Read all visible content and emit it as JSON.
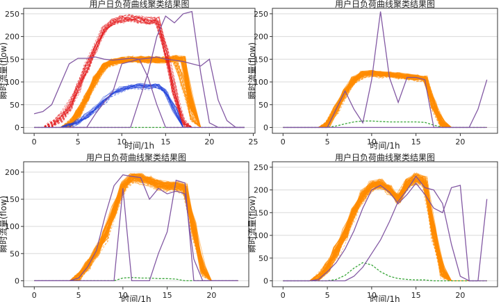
{
  "chart_data": [
    {
      "type": "line",
      "title": "用户日负荷曲线聚类结果图",
      "xlabel": "时间/1h",
      "ylabel": "瞬时流量(flow)",
      "xlim": [
        -1.2,
        25.2
      ],
      "ylim": [
        -13,
        262
      ],
      "xticks": [
        0,
        5,
        10,
        15,
        20,
        25
      ],
      "yticks": [
        0,
        50,
        100,
        150,
        200,
        250
      ],
      "grid": "horizontal",
      "x": [
        0,
        1,
        2,
        3,
        4,
        5,
        6,
        7,
        8,
        9,
        10,
        11,
        12,
        13,
        14,
        15,
        16,
        17,
        18,
        19,
        20,
        21,
        22,
        23,
        24
      ],
      "series": [
        {
          "color": "#ff8c00",
          "style": "solid",
          "count": 60,
          "spread": 7,
          "values": [
            0,
            0,
            0,
            0,
            5,
            30,
            68,
            105,
            135,
            145,
            148,
            150,
            150,
            150,
            148,
            148,
            152,
            150,
            50,
            0,
            0,
            0,
            0,
            0,
            0
          ]
        },
        {
          "color": "#ff8c00",
          "style": "dashed",
          "count": 30,
          "spread": 8,
          "values": [
            0,
            0,
            0,
            0,
            5,
            28,
            65,
            102,
            132,
            142,
            147,
            150,
            148,
            148,
            150,
            150,
            150,
            100,
            20,
            0,
            0,
            0,
            0,
            0,
            0
          ]
        },
        {
          "color": "#e41a1c",
          "style": "dashed",
          "count": 30,
          "spread": 9,
          "values": [
            0,
            0,
            5,
            20,
            45,
            85,
            130,
            175,
            215,
            232,
            238,
            240,
            238,
            235,
            235,
            170,
            80,
            10,
            0,
            0,
            0,
            0,
            0,
            0,
            0
          ]
        },
        {
          "color": "#1f3fdb",
          "style": "solid",
          "count": 12,
          "spread": 5,
          "values": [
            0,
            0,
            0,
            0,
            3,
            12,
            25,
            42,
            62,
            78,
            85,
            90,
            92,
            90,
            92,
            80,
            40,
            0,
            0,
            0,
            0,
            0,
            0,
            0,
            0
          ]
        },
        {
          "color": "#1f3fdb",
          "style": "dashed",
          "count": 6,
          "spread": 6,
          "values": [
            0,
            0,
            0,
            0,
            3,
            10,
            22,
            40,
            58,
            75,
            82,
            88,
            90,
            88,
            90,
            75,
            35,
            0,
            0,
            0,
            0,
            0,
            0,
            0,
            0
          ]
        },
        {
          "color": "#2ca02c",
          "style": "dashed",
          "count": 1,
          "spread": 0,
          "values": [
            0,
            0,
            0,
            0,
            0,
            0,
            0,
            0,
            0,
            0,
            0,
            0,
            0,
            0,
            0,
            0,
            0,
            0,
            0,
            0,
            0,
            0,
            0,
            0,
            0
          ]
        },
        {
          "color": "#7b4f9e",
          "style": "solid",
          "count": 1,
          "spread": 0,
          "values": [
            30,
            35,
            50,
            95,
            140,
            152,
            152,
            155,
            150,
            148,
            150,
            152,
            150,
            152,
            155,
            150,
            148,
            145,
            140,
            135,
            150,
            60,
            15,
            0,
            0
          ]
        },
        {
          "color": "#7b4f9e",
          "style": "solid",
          "count": 1,
          "spread": 0,
          "values": [
            0,
            0,
            0,
            0,
            0,
            0,
            0,
            0,
            0,
            0,
            0,
            0,
            60,
            120,
            200,
            245,
            230,
            250,
            255,
            120,
            10,
            0,
            0,
            0,
            0
          ]
        },
        {
          "color": "#7b4f9e",
          "style": "solid",
          "count": 1,
          "spread": 0,
          "values": [
            0,
            0,
            0,
            0,
            0,
            0,
            0,
            30,
            55,
            80,
            140,
            145,
            150,
            110,
            50,
            0,
            0,
            0,
            0,
            0,
            0,
            0,
            0,
            0,
            0
          ]
        }
      ]
    },
    {
      "type": "line",
      "title": "用户日负荷曲线聚类结果图",
      "xlabel": "时间/1h",
      "ylabel": "瞬时流量(flow)",
      "xlim": [
        -1.2,
        24.2
      ],
      "ylim": [
        -13,
        262
      ],
      "xticks": [
        0,
        5,
        10,
        15,
        20
      ],
      "yticks": [
        0,
        50,
        100,
        150,
        200,
        250
      ],
      "grid": "horizontal",
      "x": [
        0,
        1,
        2,
        3,
        4,
        5,
        6,
        7,
        8,
        9,
        10,
        11,
        12,
        13,
        14,
        15,
        16,
        17,
        18,
        19,
        20,
        21,
        22,
        23
      ],
      "series": [
        {
          "color": "#ff8c00",
          "style": "solid",
          "count": 55,
          "spread": 6,
          "values": [
            0,
            0,
            0,
            0,
            0,
            5,
            40,
            78,
            105,
            118,
            120,
            118,
            117,
            115,
            112,
            110,
            108,
            50,
            8,
            0,
            0,
            0,
            0,
            0
          ]
        },
        {
          "color": "#ff8c00",
          "style": "dashed",
          "count": 25,
          "spread": 7,
          "values": [
            0,
            0,
            0,
            0,
            0,
            5,
            38,
            75,
            100,
            115,
            118,
            115,
            115,
            112,
            110,
            108,
            105,
            45,
            5,
            0,
            0,
            0,
            0,
            0
          ]
        },
        {
          "color": "#2ca02c",
          "style": "dashed",
          "count": 1,
          "spread": 0,
          "values": [
            0,
            0,
            0,
            0,
            0,
            0,
            3,
            8,
            12,
            14,
            14,
            13,
            12,
            12,
            12,
            12,
            11,
            5,
            0,
            0,
            0,
            0,
            0,
            0
          ]
        },
        {
          "color": "#7b4f9e",
          "style": "solid",
          "count": 1,
          "spread": 0,
          "values": [
            0,
            0,
            0,
            0,
            0,
            0,
            40,
            80,
            40,
            10,
            105,
            255,
            110,
            55,
            110,
            110,
            105,
            0,
            0,
            0,
            0,
            0,
            40,
            105
          ]
        },
        {
          "color": "#7b4f9e",
          "style": "solid",
          "count": 1,
          "spread": 0,
          "values": [
            0,
            0,
            0,
            0,
            0,
            0,
            0,
            0,
            0,
            0,
            0,
            0,
            0,
            0,
            0,
            0,
            0,
            0,
            0,
            0,
            0,
            0,
            0,
            0
          ]
        }
      ]
    },
    {
      "type": "line",
      "title": "用户日负荷曲线聚类结果图",
      "xlabel": "时间/1h",
      "ylabel": "瞬时流量(flow)",
      "xlim": [
        -1.2,
        24.2
      ],
      "ylim": [
        -11,
        219
      ],
      "xticks": [
        0,
        5,
        10,
        15,
        20
      ],
      "yticks": [
        0,
        50,
        100,
        150,
        200
      ],
      "grid": "horizontal",
      "x": [
        0,
        1,
        2,
        3,
        4,
        5,
        6,
        7,
        8,
        9,
        10,
        11,
        12,
        13,
        14,
        15,
        16,
        17,
        18,
        19,
        20,
        21,
        22,
        23
      ],
      "series": [
        {
          "color": "#ff8c00",
          "style": "solid",
          "count": 55,
          "spread": 8,
          "values": [
            0,
            0,
            0,
            0,
            0,
            5,
            30,
            55,
            85,
            130,
            175,
            190,
            190,
            185,
            178,
            175,
            175,
            172,
            100,
            20,
            0,
            0,
            0,
            0
          ]
        },
        {
          "color": "#ff8c00",
          "style": "dashed",
          "count": 25,
          "spread": 9,
          "values": [
            0,
            0,
            0,
            0,
            0,
            5,
            28,
            52,
            80,
            125,
            170,
            188,
            185,
            182,
            175,
            172,
            172,
            165,
            90,
            15,
            0,
            0,
            0,
            0
          ]
        },
        {
          "color": "#2ca02c",
          "style": "dashed",
          "count": 1,
          "spread": 0,
          "values": [
            0,
            0,
            0,
            0,
            0,
            0,
            0,
            0,
            0,
            0,
            5,
            6,
            5,
            5,
            4,
            4,
            3,
            0,
            0,
            0,
            0,
            0,
            0,
            0
          ]
        },
        {
          "color": "#7b4f9e",
          "style": "solid",
          "count": 1,
          "spread": 0,
          "values": [
            0,
            0,
            0,
            0,
            0,
            5,
            25,
            55,
            120,
            175,
            195,
            192,
            190,
            150,
            170,
            160,
            165,
            160,
            40,
            0,
            0,
            0,
            0,
            0
          ]
        },
        {
          "color": "#7b4f9e",
          "style": "solid",
          "count": 1,
          "spread": 0,
          "values": [
            0,
            0,
            0,
            0,
            0,
            0,
            0,
            0,
            0,
            0,
            170,
            0,
            0,
            0,
            50,
            90,
            185,
            180,
            0,
            0,
            0,
            0,
            0,
            0
          ]
        }
      ]
    },
    {
      "type": "line",
      "title": "用户日负荷曲线聚类结果图",
      "xlabel": "时间/1h",
      "ylabel": "瞬时流量(flow)",
      "xlim": [
        -1.2,
        24.2
      ],
      "ylim": [
        -13,
        262
      ],
      "xticks": [
        0,
        5,
        10,
        15,
        20
      ],
      "yticks": [
        0,
        50,
        100,
        150,
        200,
        250
      ],
      "grid": "horizontal",
      "x": [
        0,
        1,
        2,
        3,
        4,
        5,
        6,
        7,
        8,
        9,
        10,
        11,
        12,
        13,
        14,
        15,
        16,
        17,
        18,
        19,
        20,
        21,
        22,
        23
      ],
      "series": [
        {
          "color": "#ff8c00",
          "style": "solid",
          "count": 55,
          "spread": 10,
          "values": [
            0,
            0,
            0,
            0,
            5,
            30,
            65,
            105,
            150,
            190,
            210,
            215,
            200,
            180,
            215,
            228,
            220,
            110,
            20,
            0,
            0,
            0,
            0,
            0
          ]
        },
        {
          "color": "#ff8c00",
          "style": "dashed",
          "count": 25,
          "spread": 11,
          "values": [
            0,
            0,
            0,
            0,
            5,
            28,
            62,
            100,
            145,
            185,
            205,
            210,
            198,
            178,
            212,
            222,
            215,
            100,
            15,
            0,
            0,
            0,
            0,
            0
          ]
        },
        {
          "color": "#2ca02c",
          "style": "dashed",
          "count": 1,
          "spread": 0,
          "values": [
            0,
            0,
            0,
            0,
            0,
            0,
            3,
            12,
            28,
            40,
            35,
            20,
            10,
            5,
            3,
            2,
            2,
            0,
            0,
            0,
            0,
            0,
            0,
            0
          ]
        },
        {
          "color": "#7b4f9e",
          "style": "solid",
          "count": 1,
          "spread": 0,
          "values": [
            0,
            0,
            0,
            0,
            3,
            20,
            40,
            70,
            110,
            160,
            200,
            210,
            195,
            170,
            190,
            215,
            190,
            160,
            150,
            205,
            210,
            0,
            0,
            180
          ]
        },
        {
          "color": "#7b4f9e",
          "style": "solid",
          "count": 1,
          "spread": 0,
          "values": [
            0,
            0,
            0,
            0,
            0,
            0,
            0,
            0,
            10,
            30,
            60,
            90,
            130,
            175,
            200,
            230,
            205,
            200,
            170,
            80,
            10,
            0,
            0,
            0
          ]
        }
      ]
    }
  ]
}
